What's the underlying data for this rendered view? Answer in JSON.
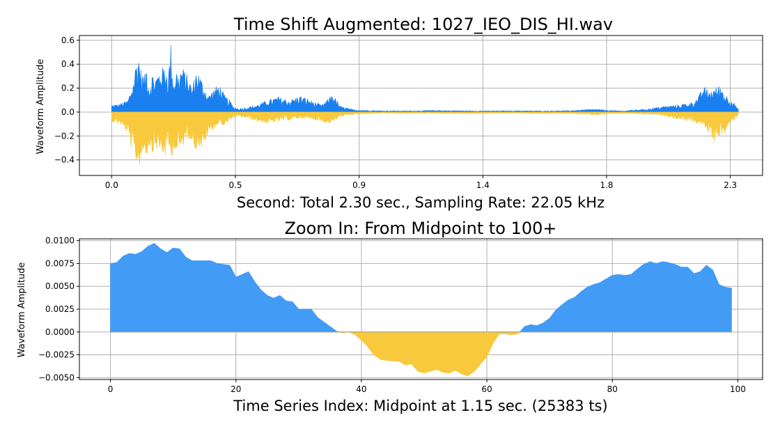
{
  "chart_data": [
    {
      "type": "area",
      "title": "Time Shift Augmented: 1027_IEO_DIS_HI.wav",
      "xlabel": "Second: Total 2.30 sec., Sampling Rate: 22.05 kHz",
      "ylabel": "Waveform Amplitude",
      "xlim": [
        -0.12,
        2.42
      ],
      "ylim": [
        -0.53,
        0.64
      ],
      "xticks": [
        0.0,
        0.46,
        0.92,
        1.38,
        1.84,
        2.3
      ],
      "xtick_labels": [
        "0.0",
        "0.5",
        "0.9",
        "1.4",
        "1.8",
        "2.3"
      ],
      "yticks": [
        -0.4,
        -0.2,
        0.0,
        0.2,
        0.4,
        0.6
      ],
      "ytick_labels": [
        "−0.4",
        "−0.2",
        "0.0",
        "0.2",
        "0.4",
        "0.6"
      ],
      "grid": true,
      "positive_color": "#1a80f0",
      "negative_color": "#f8c93c",
      "envelope": {
        "x": [
          0.0,
          0.03,
          0.06,
          0.08,
          0.09,
          0.1,
          0.11,
          0.12,
          0.13,
          0.14,
          0.15,
          0.16,
          0.18,
          0.2,
          0.21,
          0.22,
          0.23,
          0.24,
          0.25,
          0.26,
          0.28,
          0.3,
          0.31,
          0.32,
          0.34,
          0.36,
          0.38,
          0.4,
          0.42,
          0.44,
          0.45,
          0.47,
          0.5,
          0.54,
          0.58,
          0.62,
          0.66,
          0.7,
          0.74,
          0.78,
          0.8,
          0.82,
          0.85,
          0.9,
          1.0,
          1.1,
          1.2,
          1.3,
          1.4,
          1.5,
          1.6,
          1.7,
          1.75,
          1.8,
          1.85,
          1.9,
          2.0,
          2.05,
          2.1,
          2.15,
          2.18,
          2.2,
          2.22,
          2.24,
          2.26,
          2.27,
          2.28,
          2.3,
          2.32,
          2.33
        ],
        "pos": [
          0.06,
          0.07,
          0.1,
          0.25,
          0.42,
          0.49,
          0.35,
          0.3,
          0.4,
          0.2,
          0.33,
          0.28,
          0.36,
          0.4,
          0.3,
          0.58,
          0.25,
          0.36,
          0.3,
          0.39,
          0.32,
          0.2,
          0.34,
          0.35,
          0.24,
          0.14,
          0.2,
          0.24,
          0.14,
          0.1,
          0.05,
          0.03,
          0.04,
          0.06,
          0.1,
          0.13,
          0.1,
          0.14,
          0.1,
          0.06,
          0.1,
          0.16,
          0.05,
          0.02,
          0.012,
          0.01,
          0.015,
          0.012,
          0.01,
          0.012,
          0.01,
          0.012,
          0.02,
          0.025,
          0.015,
          0.01,
          0.03,
          0.05,
          0.06,
          0.08,
          0.12,
          0.22,
          0.18,
          0.2,
          0.23,
          0.2,
          0.15,
          0.12,
          0.06,
          0.02
        ],
        "neg": [
          -0.08,
          -0.1,
          -0.18,
          -0.38,
          -0.42,
          -0.48,
          -0.4,
          -0.32,
          -0.38,
          -0.28,
          -0.35,
          -0.3,
          -0.34,
          -0.38,
          -0.28,
          -0.42,
          -0.3,
          -0.36,
          -0.33,
          -0.32,
          -0.2,
          -0.25,
          -0.33,
          -0.28,
          -0.33,
          -0.18,
          -0.14,
          -0.1,
          -0.12,
          -0.07,
          -0.05,
          -0.04,
          -0.05,
          -0.08,
          -0.1,
          -0.08,
          -0.07,
          -0.05,
          -0.06,
          -0.08,
          -0.1,
          -0.09,
          -0.04,
          -0.02,
          -0.01,
          -0.012,
          -0.01,
          -0.015,
          -0.012,
          -0.01,
          -0.015,
          -0.012,
          -0.02,
          -0.025,
          -0.015,
          -0.012,
          -0.02,
          -0.03,
          -0.06,
          -0.08,
          -0.1,
          -0.12,
          -0.18,
          -0.25,
          -0.2,
          -0.22,
          -0.18,
          -0.1,
          -0.05,
          -0.02
        ]
      }
    },
    {
      "type": "area",
      "title": "Zoom In: From Midpoint to 100+",
      "xlabel": "Time Series Index: Midpoint at 1.15 sec. (25383 ts)",
      "ylabel": "Waveform Amplitude",
      "xlim": [
        -4.95,
        103.95
      ],
      "ylim": [
        -0.0052,
        0.0102
      ],
      "xticks": [
        0,
        20,
        40,
        60,
        80,
        100
      ],
      "xtick_labels": [
        "0",
        "20",
        "40",
        "60",
        "80",
        "100"
      ],
      "yticks": [
        -0.005,
        -0.0025,
        0.0,
        0.0025,
        0.005,
        0.0075,
        0.01
      ],
      "ytick_labels": [
        "−0.0050",
        "−0.0025",
        "0.0000",
        "0.0025",
        "0.0050",
        "0.0075",
        "0.0100"
      ],
      "grid": true,
      "positive_color": "#429bf4",
      "negative_color": "#f8c93c",
      "x": [
        0,
        1,
        2,
        3,
        4,
        5,
        6,
        7,
        8,
        9,
        10,
        11,
        12,
        13,
        14,
        15,
        16,
        17,
        18,
        19,
        20,
        21,
        22,
        23,
        24,
        25,
        26,
        27,
        28,
        29,
        30,
        31,
        32,
        33,
        34,
        35,
        36,
        37,
        38,
        39,
        40,
        41,
        42,
        43,
        44,
        45,
        46,
        47,
        48,
        49,
        50,
        51,
        52,
        53,
        54,
        55,
        56,
        57,
        58,
        59,
        60,
        61,
        62,
        63,
        64,
        65,
        66,
        67,
        68,
        69,
        70,
        71,
        72,
        73,
        74,
        75,
        76,
        77,
        78,
        79,
        80,
        81,
        82,
        83,
        84,
        85,
        86,
        87,
        88,
        89,
        90,
        91,
        92,
        93,
        94,
        95,
        96,
        97,
        98,
        99
      ],
      "y": [
        0.0075,
        0.0076,
        0.0083,
        0.0086,
        0.0085,
        0.0088,
        0.0094,
        0.0097,
        0.0091,
        0.0087,
        0.0092,
        0.0091,
        0.0082,
        0.0078,
        0.0078,
        0.0078,
        0.0078,
        0.0075,
        0.0074,
        0.0073,
        0.006,
        0.0063,
        0.0066,
        0.0055,
        0.0046,
        0.004,
        0.0037,
        0.004,
        0.0034,
        0.0033,
        0.0025,
        0.0025,
        0.0025,
        0.0016,
        0.0011,
        0.0006,
        0.0001,
        -0.0001,
        0.0,
        -0.0003,
        -0.0009,
        -0.0016,
        -0.0025,
        -0.003,
        -0.0031,
        -0.0032,
        -0.0032,
        -0.0036,
        -0.0035,
        -0.0043,
        -0.0045,
        -0.0043,
        -0.0041,
        -0.0044,
        -0.0045,
        -0.0042,
        -0.0046,
        -0.0048,
        -0.0043,
        -0.0035,
        -0.0027,
        -0.0012,
        -0.0002,
        -0.0002,
        -0.0003,
        -0.0002,
        0.0006,
        0.0008,
        0.0007,
        0.001,
        0.0015,
        0.0024,
        0.003,
        0.0035,
        0.0038,
        0.0044,
        0.0049,
        0.0052,
        0.0054,
        0.0058,
        0.0062,
        0.0063,
        0.0062,
        0.0063,
        0.0069,
        0.0074,
        0.0077,
        0.0075,
        0.0077,
        0.0076,
        0.0074,
        0.0071,
        0.0071,
        0.0064,
        0.0066,
        0.0073,
        0.0068,
        0.0052,
        0.0049,
        0.0048
      ]
    }
  ]
}
